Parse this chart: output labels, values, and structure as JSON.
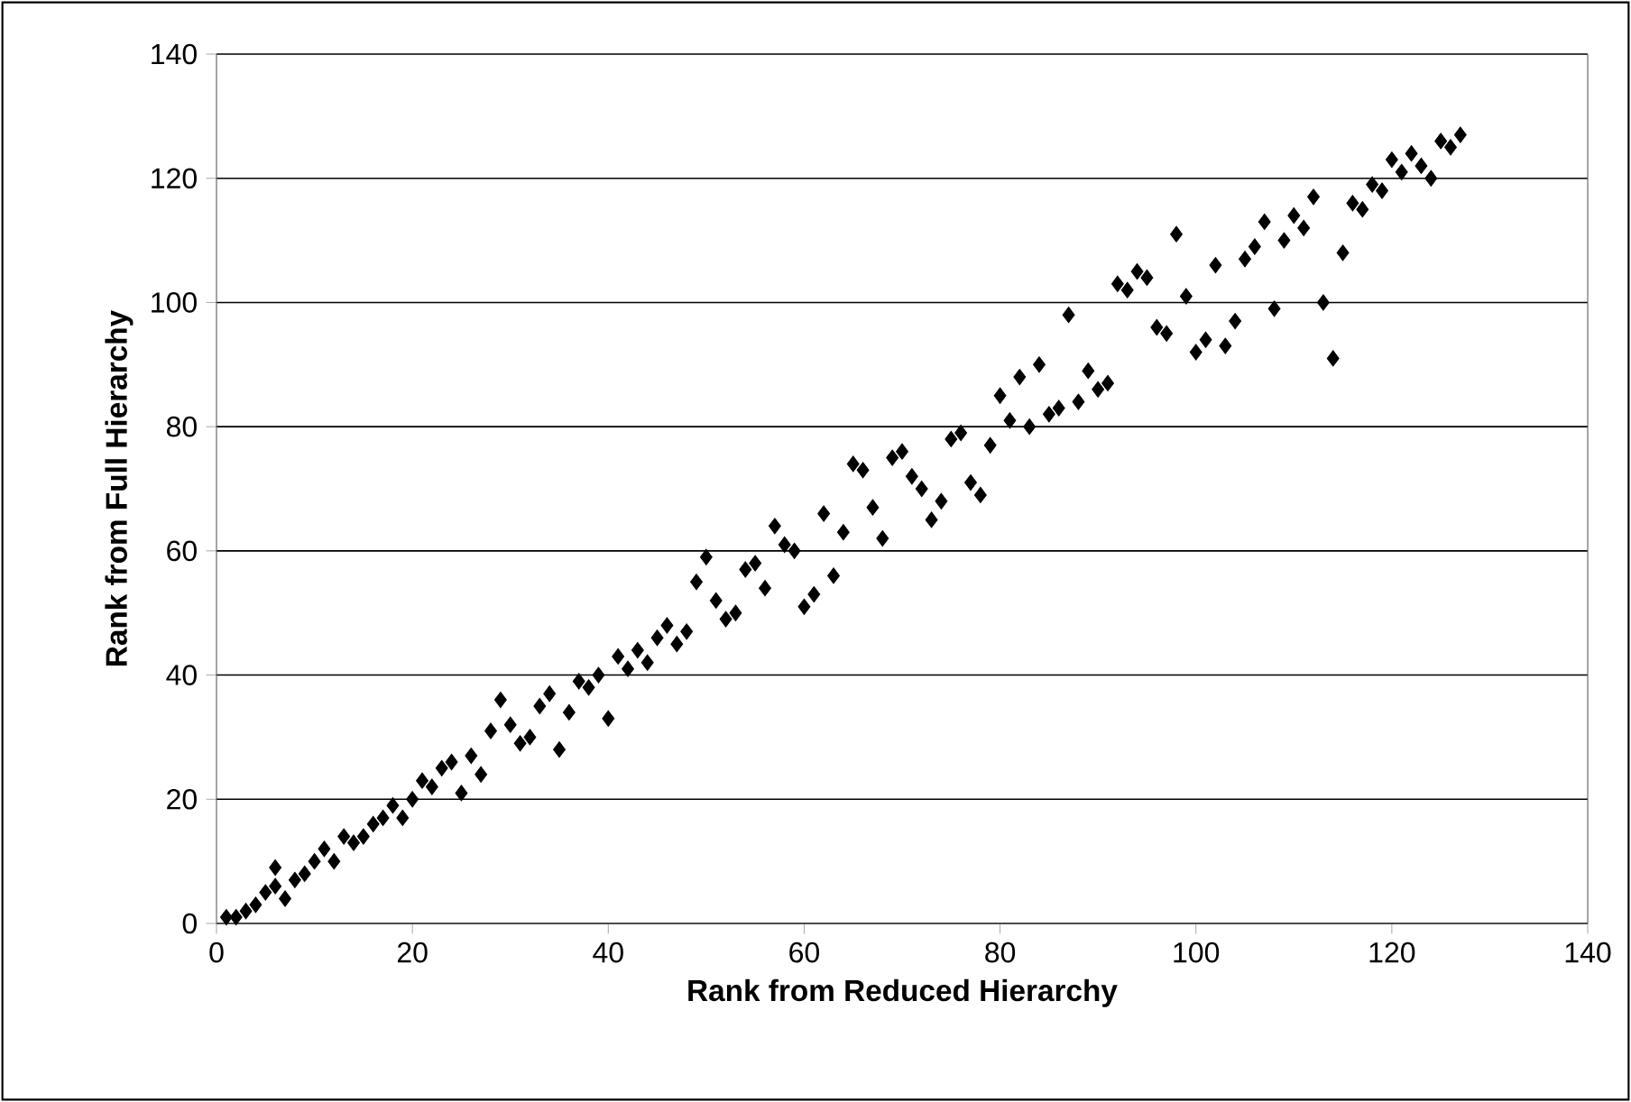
{
  "chart_data": {
    "type": "scatter",
    "xlabel": "Rank from Reduced Hierarchy",
    "ylabel": "Rank from Full Hierarchy",
    "x": [
      1,
      2,
      3,
      4,
      5,
      6,
      6,
      7,
      8,
      9,
      10,
      11,
      12,
      13,
      14,
      15,
      16,
      17,
      18,
      19,
      20,
      21,
      22,
      23,
      24,
      25,
      26,
      27,
      28,
      29,
      30,
      31,
      32,
      33,
      34,
      35,
      36,
      37,
      38,
      39,
      40,
      41,
      42,
      43,
      44,
      45,
      46,
      47,
      48,
      49,
      50,
      51,
      52,
      53,
      54,
      55,
      56,
      57,
      58,
      59,
      60,
      61,
      62,
      63,
      64,
      65,
      66,
      67,
      68,
      69,
      70,
      71,
      72,
      73,
      74,
      75,
      76,
      77,
      78,
      79,
      80,
      81,
      82,
      83,
      84,
      85,
      86,
      87,
      88,
      89,
      90,
      91,
      92,
      93,
      94,
      95,
      96,
      97,
      98,
      99,
      100,
      101,
      102,
      103,
      104,
      105,
      106,
      107,
      108,
      109,
      110,
      111,
      112,
      113,
      114,
      115,
      116,
      117,
      118,
      119,
      120,
      121,
      122,
      123,
      124,
      125,
      126,
      127
    ],
    "values": [
      1,
      1,
      2,
      3,
      5,
      6,
      9,
      4,
      7,
      8,
      10,
      12,
      10,
      14,
      13,
      14,
      16,
      17,
      19,
      17,
      20,
      23,
      22,
      25,
      26,
      21,
      27,
      24,
      31,
      36,
      32,
      29,
      30,
      35,
      37,
      28,
      34,
      39,
      38,
      40,
      33,
      43,
      41,
      44,
      42,
      46,
      48,
      45,
      47,
      55,
      59,
      52,
      49,
      50,
      57,
      58,
      54,
      64,
      61,
      60,
      51,
      53,
      66,
      56,
      63,
      74,
      73,
      67,
      62,
      75,
      76,
      72,
      70,
      65,
      68,
      78,
      79,
      71,
      69,
      77,
      85,
      81,
      88,
      80,
      90,
      82,
      83,
      98,
      84,
      89,
      86,
      87,
      103,
      102,
      105,
      104,
      96,
      95,
      111,
      101,
      92,
      94,
      106,
      93,
      97,
      107,
      109,
      113,
      99,
      110,
      114,
      112,
      117,
      100,
      91,
      108,
      116,
      115,
      119,
      118,
      123,
      121,
      124,
      122,
      120,
      126,
      125,
      127
    ],
    "color": "#000000",
    "marker": "diamond",
    "grid": "y",
    "xlim": [
      0,
      140
    ],
    "ylim": [
      0,
      140
    ],
    "xticks": [
      0,
      20,
      40,
      60,
      80,
      100,
      120,
      140
    ],
    "yticks": [
      0,
      20,
      40,
      60,
      80,
      100,
      120,
      140
    ]
  }
}
